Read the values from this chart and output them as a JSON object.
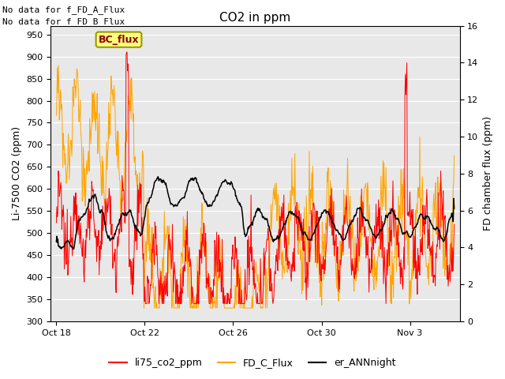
{
  "title": "CO2 in ppm",
  "ylabel_left": "Li-7500 CO2 (ppm)",
  "ylabel_right": "FD chamber flux (ppm)",
  "text_no_data_1": "No data for f_FD_A_Flux",
  "text_no_data_2": "No data for f_FD_B_Flux",
  "legend_label": "BC_flux",
  "legend_entries": [
    "li75_co2_ppm",
    "FD_C_Flux",
    "er_ANNnight"
  ],
  "line_colors": [
    "#ff0000",
    "#ffa500",
    "#000000"
  ],
  "ylim_left": [
    300,
    970
  ],
  "ylim_right": [
    0,
    16
  ],
  "yticks_left": [
    300,
    350,
    400,
    450,
    500,
    550,
    600,
    650,
    700,
    750,
    800,
    850,
    900,
    950
  ],
  "yticks_right": [
    0,
    2,
    4,
    6,
    8,
    10,
    12,
    14,
    16
  ],
  "background_color": "#ffffff",
  "plot_bg_color": "#e8e8e8",
  "num_points": 800
}
